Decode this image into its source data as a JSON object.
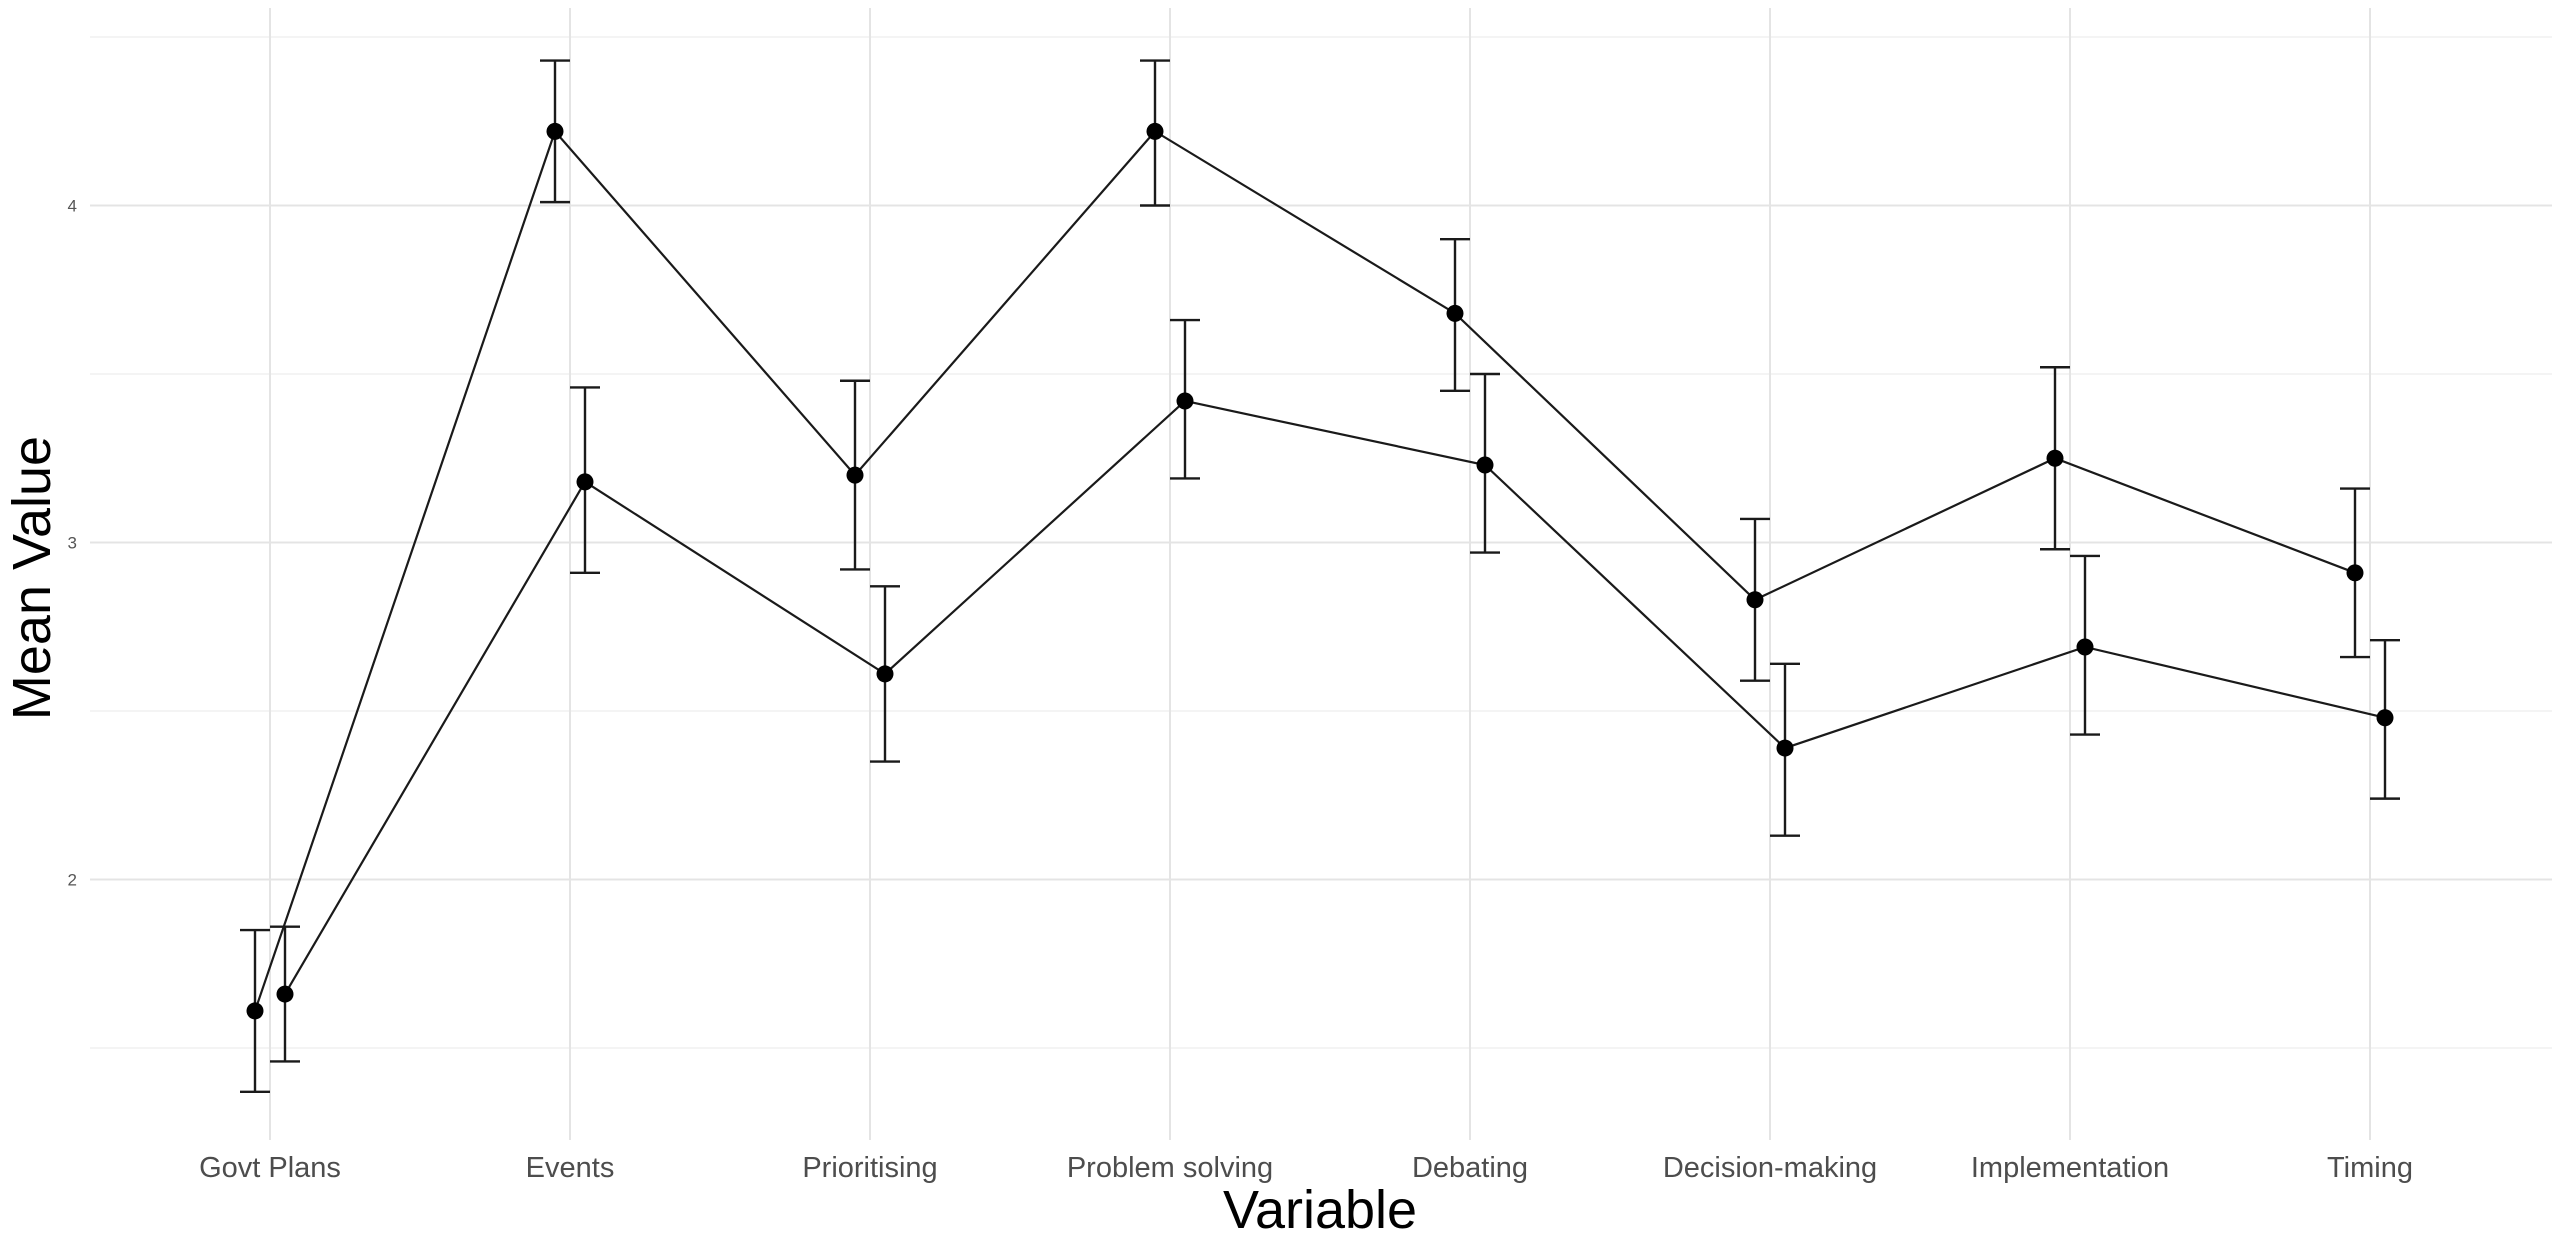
{
  "chart_data": {
    "type": "line",
    "title": "",
    "xlabel": "Variable",
    "ylabel": "Mean Value",
    "categories": [
      "Govt Plans",
      "Events",
      "Prioritising",
      "Problem solving",
      "Debating",
      "Decision-making",
      "Implementation",
      "Timing"
    ],
    "yticks": [
      2,
      3,
      4
    ],
    "ylim": [
      1.24,
      4.6
    ],
    "grid": true,
    "legend": "none",
    "dodge": 0.1,
    "series": [
      {
        "values": [
          1.61,
          4.22,
          3.2,
          4.22,
          3.68,
          2.83,
          3.25,
          2.91
        ],
        "lower": [
          1.37,
          4.01,
          2.92,
          4.0,
          3.45,
          2.59,
          2.98,
          2.66
        ],
        "upper": [
          1.85,
          4.43,
          3.48,
          4.43,
          3.9,
          3.07,
          3.52,
          3.16
        ]
      },
      {
        "values": [
          1.66,
          3.18,
          2.61,
          3.42,
          3.23,
          2.39,
          2.69,
          2.48
        ],
        "lower": [
          1.46,
          2.91,
          2.35,
          3.19,
          2.97,
          2.13,
          2.43,
          2.24
        ],
        "upper": [
          1.86,
          3.46,
          2.87,
          3.66,
          3.5,
          2.64,
          2.96,
          2.71
        ]
      }
    ]
  }
}
